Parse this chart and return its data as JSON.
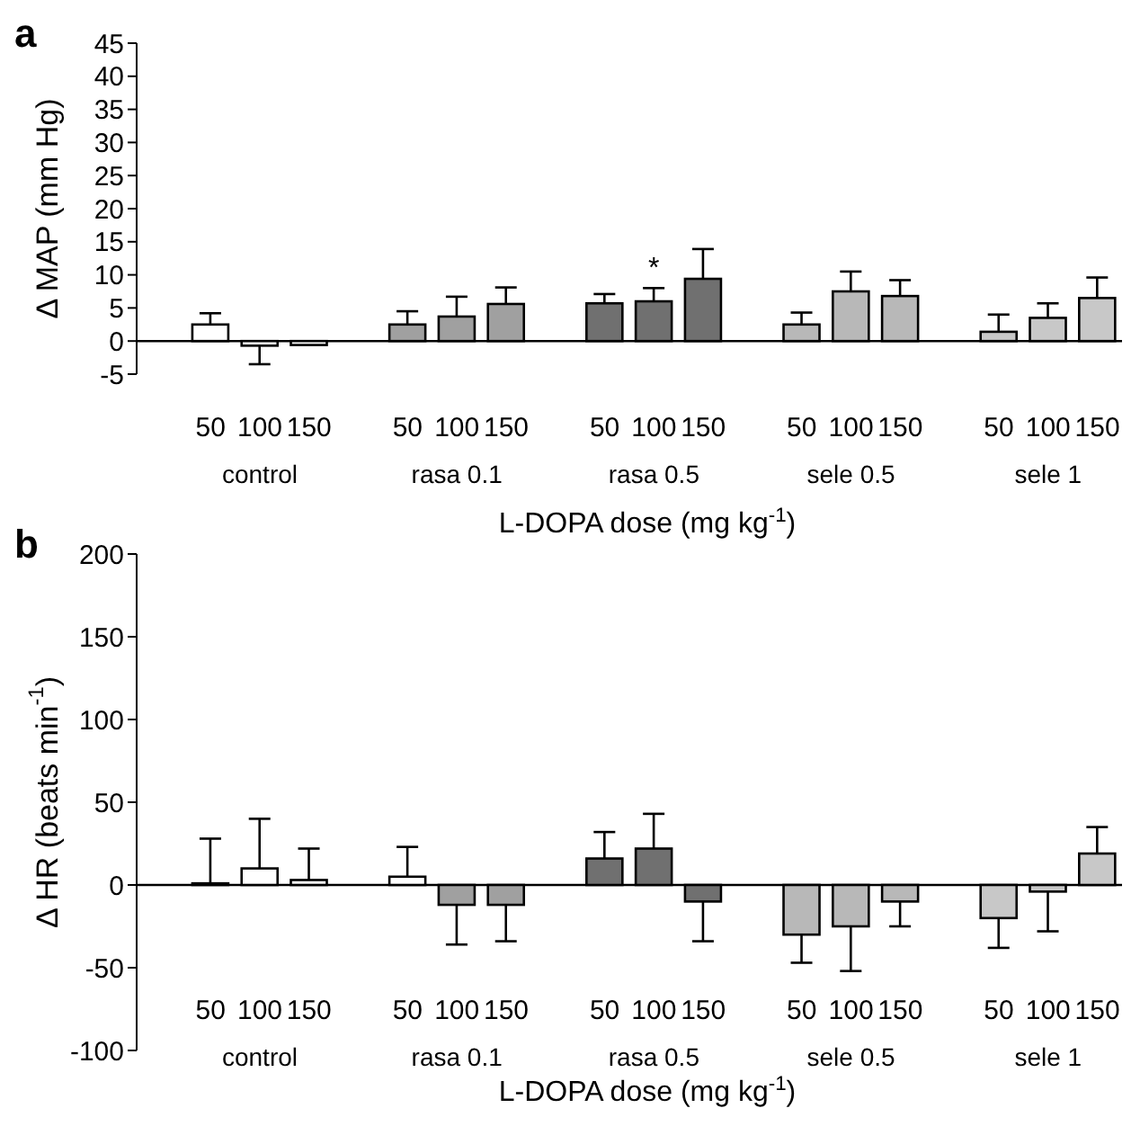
{
  "chart_data": [
    {
      "type": "bar",
      "title": "a",
      "xlabel": "L-DOPA dose (mg kg$^{-1}$)",
      "ylabel": "Δ MAP (mm Hg)",
      "categories": [
        "50",
        "100",
        "150",
        "50",
        "100",
        "150",
        "50",
        "100",
        "150",
        "50",
        "100",
        "150",
        "50",
        "100",
        "150"
      ],
      "values": [
        2.5,
        -0.7,
        -0.6,
        2.5,
        3.7,
        5.6,
        5.7,
        6.0,
        9.4,
        2.5,
        7.5,
        6.8,
        1.4,
        3.5,
        6.5
      ],
      "errors": [
        [
          2.5,
          4.2
        ],
        [
          -3.5,
          -0.7
        ],
        null,
        [
          2.5,
          4.5
        ],
        [
          3.7,
          6.7
        ],
        [
          5.6,
          8.1
        ],
        [
          5.7,
          7.1
        ],
        [
          6.0,
          8.0
        ],
        [
          9.4,
          13.9
        ],
        [
          2.5,
          4.3
        ],
        [
          7.5,
          10.5
        ],
        [
          6.8,
          9.2
        ],
        [
          1.4,
          4.0
        ],
        [
          3.5,
          5.7
        ],
        [
          6.5,
          9.6
        ]
      ],
      "value_labels": [
        null,
        null,
        null,
        null,
        null,
        null,
        null,
        "*",
        null,
        null,
        null,
        null,
        null,
        null,
        null
      ],
      "colors": [
        "#ffffff",
        "#ffffff",
        "#ffffff",
        "#a0a0a0",
        "#a0a0a0",
        "#a0a0a0",
        "#707070",
        "#707070",
        "#707070",
        "#b8b8b8",
        "#b8b8b8",
        "#b8b8b8",
        "#c8c8c8",
        "#c8c8c8",
        "#c8c8c8"
      ],
      "annotations": [
        "control",
        "rasa 0.1",
        "rasa 0.5",
        "sele 0.5",
        "sele 1"
      ],
      "ylim": [
        -5,
        45
      ],
      "yticks": [
        -5,
        0,
        5,
        10,
        15,
        20,
        25,
        30,
        35,
        40,
        45
      ]
    },
    {
      "type": "bar",
      "title": "b",
      "xlabel": "L-DOPA dose (mg kg$^{-1}$)",
      "ylabel": "Δ HR (beats min$^{-1}$)",
      "categories": [
        "50",
        "100",
        "150",
        "50",
        "100",
        "150",
        "50",
        "100",
        "150",
        "50",
        "100",
        "150",
        "50",
        "100",
        "150"
      ],
      "values": [
        1,
        10,
        3,
        5,
        -12,
        -12,
        16,
        22,
        -10,
        -30,
        -25,
        -10,
        -20,
        -4,
        19
      ],
      "errors": [
        [
          1,
          28
        ],
        [
          10,
          40
        ],
        [
          3,
          22
        ],
        [
          5,
          23
        ],
        [
          -36,
          -12
        ],
        [
          -34,
          -12
        ],
        [
          16,
          32
        ],
        [
          22,
          43
        ],
        [
          -34,
          -10
        ],
        [
          -47,
          -30
        ],
        [
          -52,
          -25
        ],
        [
          -25,
          -10
        ],
        [
          -38,
          -20
        ],
        [
          -28,
          -4
        ],
        [
          19,
          35
        ]
      ],
      "colors": [
        "#ffffff",
        "#ffffff",
        "#ffffff",
        "#ffffff",
        "#a0a0a0",
        "#a0a0a0",
        "#707070",
        "#707070",
        "#707070",
        "#b8b8b8",
        "#b8b8b8",
        "#b8b8b8",
        "#c8c8c8",
        "#c8c8c8",
        "#c8c8c8"
      ],
      "annotations": [
        "control",
        "rasa 0.1",
        "rasa 0.5",
        "sele 0.5",
        "sele 1"
      ],
      "ylim": [
        -100,
        200
      ],
      "yticks": [
        -100,
        -50,
        0,
        50,
        100,
        150,
        200
      ]
    }
  ]
}
